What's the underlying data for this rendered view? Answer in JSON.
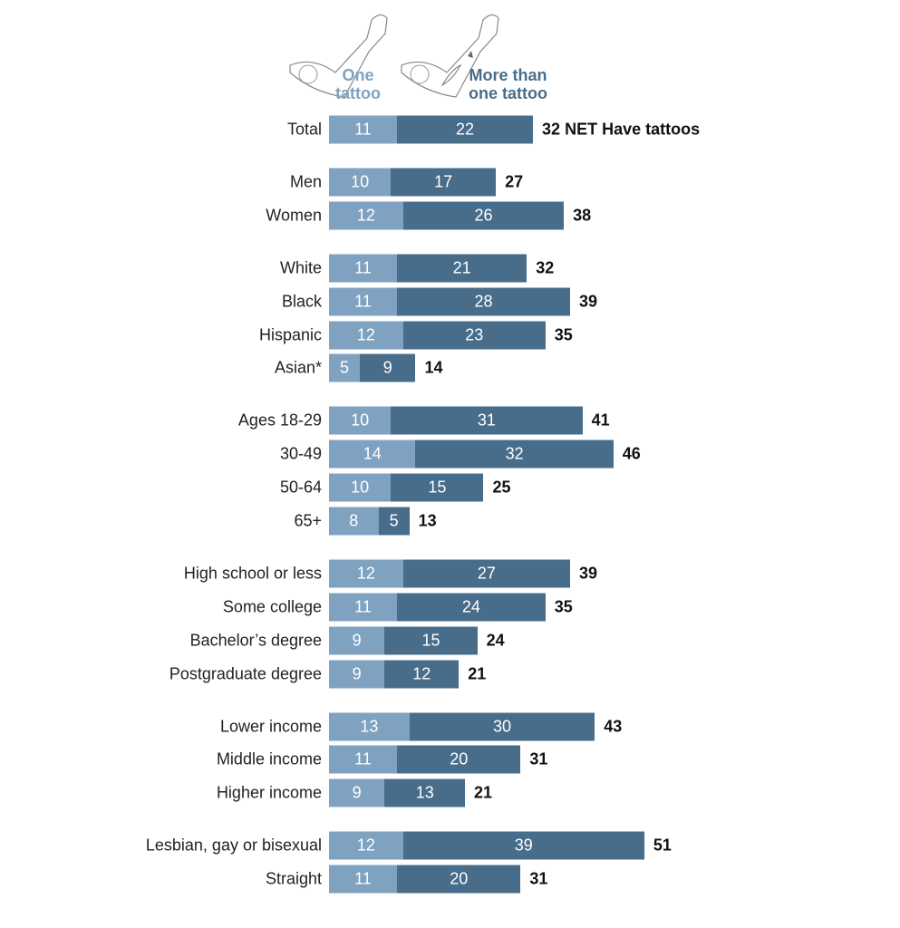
{
  "chart_data": {
    "type": "bar",
    "stacked": true,
    "orientation": "horizontal",
    "colors": {
      "One tattoo": "#7fa2c0",
      "More than one tattoo": "#486d8b"
    },
    "legend": [
      "One tattoo",
      "More than one tattoo"
    ],
    "net_suffix": "NET Have tattoos",
    "groups": [
      [
        {
          "label": "Total",
          "one": 11,
          "more": 22,
          "net": 32
        }
      ],
      [
        {
          "label": "Men",
          "one": 10,
          "more": 17,
          "net": 27
        },
        {
          "label": "Women",
          "one": 12,
          "more": 26,
          "net": 38
        }
      ],
      [
        {
          "label": "White",
          "one": 11,
          "more": 21,
          "net": 32
        },
        {
          "label": "Black",
          "one": 11,
          "more": 28,
          "net": 39
        },
        {
          "label": "Hispanic",
          "one": 12,
          "more": 23,
          "net": 35
        },
        {
          "label": "Asian*",
          "one": 5,
          "more": 9,
          "net": 14
        }
      ],
      [
        {
          "label": "Ages 18-29",
          "one": 10,
          "more": 31,
          "net": 41
        },
        {
          "label": "30-49",
          "one": 14,
          "more": 32,
          "net": 46
        },
        {
          "label": "50-64",
          "one": 10,
          "more": 15,
          "net": 25
        },
        {
          "label": "65+",
          "one": 8,
          "more": 5,
          "net": 13
        }
      ],
      [
        {
          "label": "High school or less",
          "one": 12,
          "more": 27,
          "net": 39
        },
        {
          "label": "Some college",
          "one": 11,
          "more": 24,
          "net": 35
        },
        {
          "label": "Bachelor's degree",
          "one": 9,
          "more": 15,
          "net": 24
        },
        {
          "label": "Postgraduate degree",
          "one": 9,
          "more": 12,
          "net": 21
        }
      ],
      [
        {
          "label": "Lower income",
          "one": 13,
          "more": 30,
          "net": 43
        },
        {
          "label": "Middle income",
          "one": 11,
          "more": 20,
          "net": 31
        },
        {
          "label": "Higher income",
          "one": 9,
          "more": 13,
          "net": 21
        }
      ],
      [
        {
          "label": "Lesbian, gay or bisexual",
          "one": 12,
          "more": 39,
          "net": 51
        },
        {
          "label": "Straight",
          "one": 11,
          "more": 20,
          "net": 31
        }
      ]
    ]
  }
}
